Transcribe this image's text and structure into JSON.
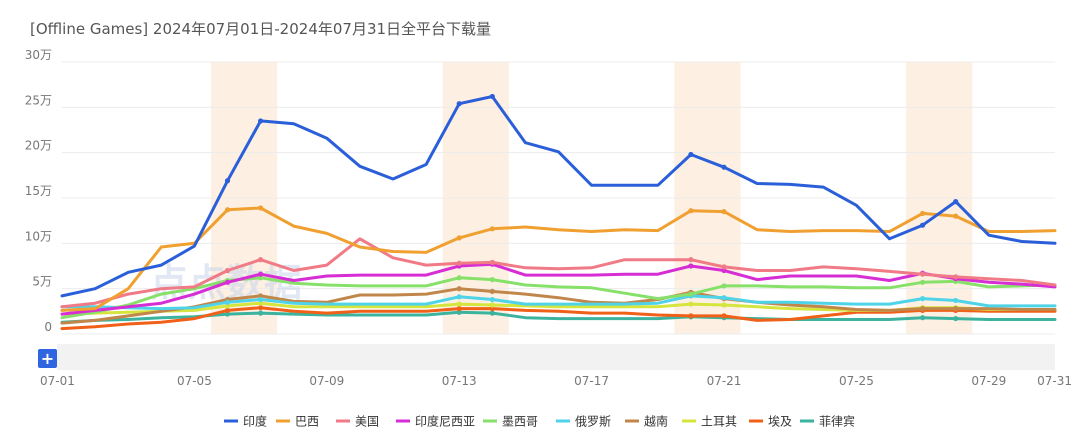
{
  "title": "[Offline Games]  2024年07月01日-2024年07月31日全平台下载量",
  "zoom_button": "+",
  "watermark": "点点数据",
  "colors": {
    "grid": "#ececec",
    "highlight": "#fdf0e2",
    "scroll_track": "#f2f2f2",
    "zoom_button": "#2f65e0"
  },
  "chart_data": {
    "type": "line",
    "title": "[Offline Games]  2024年07月01日-2024年07月31日全平台下载量",
    "x": [
      "07-01",
      "07-02",
      "07-03",
      "07-04",
      "07-05",
      "07-06",
      "07-07",
      "07-08",
      "07-09",
      "07-10",
      "07-11",
      "07-12",
      "07-13",
      "07-14",
      "07-15",
      "07-16",
      "07-17",
      "07-18",
      "07-19",
      "07-20",
      "07-21",
      "07-22",
      "07-23",
      "07-24",
      "07-25",
      "07-26",
      "07-27",
      "07-28",
      "07-29",
      "07-30",
      "07-31"
    ],
    "x_tick_labels": [
      "07-01",
      "07-05",
      "07-09",
      "07-13",
      "07-17",
      "07-21",
      "07-25",
      "07-29",
      "07-31"
    ],
    "y_ticks": [
      0,
      5,
      10,
      15,
      20,
      25,
      30
    ],
    "y_tick_labels": [
      "0",
      "5万",
      "10万",
      "15万",
      "20万",
      "25万",
      "30万"
    ],
    "ylim": [
      0,
      30
    ],
    "unit": "万",
    "grid": true,
    "legend_position": "bottom",
    "highlight_ranges": [
      [
        "07-06",
        "07-07"
      ],
      [
        "07-13",
        "07-14"
      ],
      [
        "07-20",
        "07-21"
      ],
      [
        "07-27",
        "07-28"
      ]
    ],
    "series": [
      {
        "name": "印度",
        "color": "#2b5fd9",
        "values": [
          4.2,
          5.0,
          6.8,
          7.6,
          9.7,
          16.9,
          23.5,
          23.2,
          21.6,
          18.5,
          17.1,
          18.7,
          25.4,
          26.2,
          21.1,
          20.1,
          16.4,
          16.4,
          16.4,
          19.8,
          18.4,
          16.6,
          16.5,
          16.2,
          14.2,
          10.5,
          12.0,
          14.6,
          10.9,
          10.2,
          10.0
        ],
        "markers": [
          5,
          6,
          12,
          13,
          19,
          20,
          26,
          27
        ]
      },
      {
        "name": "巴西",
        "color": "#f0a030",
        "values": [
          2.6,
          2.8,
          5.0,
          9.6,
          10.0,
          13.7,
          13.9,
          11.9,
          11.1,
          9.6,
          9.1,
          9.0,
          10.6,
          11.6,
          11.8,
          11.5,
          11.3,
          11.5,
          11.4,
          13.6,
          13.5,
          11.5,
          11.3,
          11.4,
          11.4,
          11.3,
          13.3,
          13.0,
          11.3,
          11.3,
          11.4
        ],
        "markers": [
          5,
          6,
          12,
          13,
          19,
          20,
          26,
          27
        ]
      },
      {
        "name": "美国",
        "color": "#f07a86",
        "values": [
          3.0,
          3.4,
          4.4,
          5.0,
          5.2,
          7.0,
          8.2,
          7.0,
          7.6,
          10.5,
          8.4,
          7.6,
          7.8,
          7.9,
          7.3,
          7.2,
          7.3,
          8.2,
          8.2,
          8.2,
          7.4,
          7.0,
          7.0,
          7.4,
          7.2,
          6.9,
          6.6,
          6.3,
          6.1,
          5.9,
          5.4
        ],
        "markers": [
          5,
          6,
          12,
          13,
          19,
          20,
          26,
          27
        ]
      },
      {
        "name": "印度尼西亚",
        "color": "#d62dd4",
        "values": [
          2.2,
          2.6,
          3.0,
          3.4,
          4.4,
          5.7,
          6.6,
          5.9,
          6.4,
          6.5,
          6.5,
          6.5,
          7.5,
          7.7,
          6.5,
          6.5,
          6.5,
          6.6,
          6.6,
          7.5,
          7.0,
          6.0,
          6.4,
          6.4,
          6.4,
          5.9,
          6.7,
          6.1,
          5.7,
          5.5,
          5.2
        ],
        "markers": [
          5,
          6,
          12,
          13,
          19,
          20,
          26,
          27
        ]
      },
      {
        "name": "墨西哥",
        "color": "#86e06a",
        "values": [
          1.8,
          2.4,
          3.2,
          4.4,
          5.0,
          5.9,
          6.2,
          5.6,
          5.4,
          5.3,
          5.3,
          5.3,
          6.2,
          6.0,
          5.4,
          5.2,
          5.1,
          4.5,
          3.9,
          4.4,
          5.3,
          5.3,
          5.2,
          5.2,
          5.1,
          5.1,
          5.7,
          5.8,
          5.2,
          5.3,
          5.4
        ],
        "markers": [
          5,
          6,
          12,
          13,
          19,
          20,
          26,
          27
        ]
      },
      {
        "name": "俄罗斯",
        "color": "#4ed3e8",
        "values": [
          3.0,
          3.0,
          2.9,
          2.8,
          2.9,
          3.5,
          3.8,
          3.4,
          3.3,
          3.3,
          3.3,
          3.3,
          4.1,
          3.8,
          3.3,
          3.3,
          3.3,
          3.3,
          3.4,
          4.2,
          4.0,
          3.5,
          3.5,
          3.4,
          3.3,
          3.3,
          3.9,
          3.7,
          3.1,
          3.1,
          3.1
        ],
        "markers": [
          5,
          6,
          12,
          13,
          19,
          20,
          26,
          27
        ]
      },
      {
        "name": "越南",
        "color": "#c0864a",
        "values": [
          1.2,
          1.5,
          2.0,
          2.5,
          3.0,
          3.8,
          4.2,
          3.6,
          3.5,
          4.3,
          4.3,
          4.4,
          5.0,
          4.7,
          4.4,
          4.0,
          3.5,
          3.4,
          3.8,
          4.6,
          3.9,
          3.5,
          3.2,
          3.0,
          2.7,
          2.6,
          2.8,
          2.8,
          2.8,
          2.7,
          2.7
        ],
        "markers": [
          5,
          6,
          12,
          13,
          19,
          20,
          26,
          27
        ]
      },
      {
        "name": "土耳其",
        "color": "#d6e43e",
        "values": [
          2.2,
          2.3,
          2.4,
          2.5,
          2.6,
          3.1,
          3.4,
          3.0,
          3.0,
          3.0,
          3.0,
          3.0,
          3.3,
          3.2,
          3.1,
          3.0,
          3.0,
          3.0,
          3.0,
          3.3,
          3.2,
          3.0,
          2.8,
          2.7,
          2.6,
          2.6,
          2.9,
          2.9,
          2.7,
          2.7,
          2.7
        ],
        "markers": [
          5,
          6,
          12,
          13,
          19,
          20,
          26,
          27
        ]
      },
      {
        "name": "埃及",
        "color": "#f06018",
        "values": [
          0.6,
          0.8,
          1.1,
          1.3,
          1.7,
          2.6,
          2.9,
          2.5,
          2.3,
          2.5,
          2.5,
          2.5,
          2.8,
          2.8,
          2.6,
          2.5,
          2.3,
          2.3,
          2.1,
          2.0,
          2.0,
          1.5,
          1.6,
          2.0,
          2.4,
          2.4,
          2.6,
          2.6,
          2.5,
          2.5,
          2.5
        ],
        "markers": [
          5,
          6,
          12,
          13,
          19,
          20,
          26,
          27
        ]
      },
      {
        "name": "菲律宾",
        "color": "#3cb39e",
        "values": [
          1.3,
          1.5,
          1.6,
          1.8,
          1.9,
          2.2,
          2.3,
          2.2,
          2.1,
          2.1,
          2.1,
          2.1,
          2.4,
          2.3,
          1.8,
          1.7,
          1.7,
          1.7,
          1.7,
          1.9,
          1.8,
          1.7,
          1.6,
          1.6,
          1.6,
          1.6,
          1.8,
          1.7,
          1.6,
          1.6,
          1.6
        ],
        "markers": [
          5,
          6,
          12,
          13,
          19,
          20,
          26,
          27
        ]
      }
    ]
  }
}
